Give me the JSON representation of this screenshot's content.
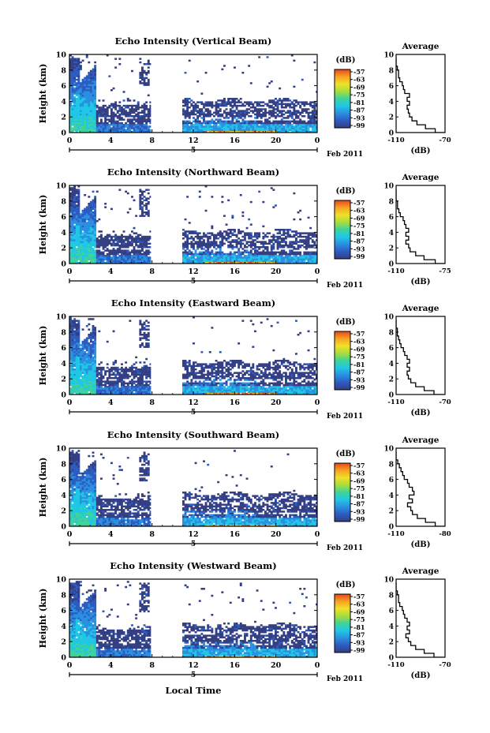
{
  "figure": {
    "xlabel": "Local Time",
    "date_label": "Feb 2011",
    "date_day": "5",
    "ylabel": "Height (km)",
    "colorbar_label": "(dB)",
    "avg_title": "Average",
    "avg_xlabel": "(dB)"
  },
  "chart_data": [
    {
      "type": "heatmap",
      "title": "Echo Intensity (Vertical Beam)",
      "xlim": [
        0,
        24
      ],
      "x_ticks": [
        "0",
        "4",
        "8",
        "12",
        "16",
        "20",
        "0"
      ],
      "ylim": [
        0,
        10
      ],
      "y_ticks": [
        "0",
        "2",
        "4",
        "6",
        "8",
        "10"
      ],
      "colorbar_ticks": [
        "-57",
        "-63",
        "-69",
        "-75",
        "-81",
        "-87",
        "-93",
        "-99"
      ],
      "gap_hours": [
        7.9,
        10.9
      ],
      "avg_xlim": [
        -110,
        -70
      ],
      "avg_x_ticks": [
        "-110",
        "-70"
      ],
      "avg_profile": [
        [
          -70,
          0
        ],
        [
          -78,
          0.5
        ],
        [
          -86,
          1
        ],
        [
          -93,
          1.5
        ],
        [
          -97,
          2
        ],
        [
          -99,
          2.5
        ],
        [
          -100,
          3
        ],
        [
          -101,
          3.5
        ],
        [
          -99,
          4
        ],
        [
          -101,
          4.5
        ],
        [
          -99,
          5
        ],
        [
          -103,
          5.5
        ],
        [
          -104,
          6
        ],
        [
          -105,
          6.5
        ],
        [
          -107,
          7
        ],
        [
          -108,
          7.5
        ],
        [
          -108,
          8
        ],
        [
          -109,
          8.5
        ],
        [
          -110,
          9
        ],
        [
          -110,
          9.5
        ],
        [
          -111,
          10
        ]
      ]
    },
    {
      "type": "heatmap",
      "title": "Echo Intensity (Northward Beam)",
      "xlim": [
        0,
        24
      ],
      "x_ticks": [
        "0",
        "4",
        "8",
        "12",
        "16",
        "20",
        "0"
      ],
      "ylim": [
        0,
        10
      ],
      "y_ticks": [
        "0",
        "2",
        "4",
        "6",
        "8",
        "10"
      ],
      "colorbar_ticks": [
        "-57",
        "-63",
        "-69",
        "-75",
        "-81",
        "-87",
        "-93",
        "-99"
      ],
      "gap_hours": [
        7.9,
        10.9
      ],
      "avg_xlim": [
        -110,
        -75
      ],
      "avg_x_ticks": [
        "-110",
        "-75"
      ],
      "avg_profile": [
        [
          -75,
          0
        ],
        [
          -82,
          0.5
        ],
        [
          -90,
          1
        ],
        [
          -96,
          1.5
        ],
        [
          -100,
          2
        ],
        [
          -101,
          2.5
        ],
        [
          -103,
          3
        ],
        [
          -101,
          3.5
        ],
        [
          -103,
          4
        ],
        [
          -101,
          4.5
        ],
        [
          -103,
          5
        ],
        [
          -104,
          5.5
        ],
        [
          -105,
          6
        ],
        [
          -107,
          6.5
        ],
        [
          -108,
          7
        ],
        [
          -109,
          7.5
        ],
        [
          -109,
          8
        ],
        [
          -110,
          8.5
        ],
        [
          -110,
          9
        ],
        [
          -110,
          9.5
        ],
        [
          -111,
          10
        ]
      ]
    },
    {
      "type": "heatmap",
      "title": "Echo Intensity (Eastward Beam)",
      "xlim": [
        0,
        24
      ],
      "x_ticks": [
        "0",
        "4",
        "8",
        "12",
        "16",
        "20",
        "0"
      ],
      "ylim": [
        0,
        10
      ],
      "y_ticks": [
        "0",
        "2",
        "4",
        "6",
        "8",
        "10"
      ],
      "colorbar_ticks": [
        "-57",
        "-63",
        "-69",
        "-75",
        "-81",
        "-87",
        "-93",
        "-99"
      ],
      "gap_hours": [
        7.9,
        10.9
      ],
      "avg_xlim": [
        -110,
        -70
      ],
      "avg_x_ticks": [
        "-110",
        "-70"
      ],
      "avg_profile": [
        [
          -71,
          0
        ],
        [
          -79,
          0.5
        ],
        [
          -87,
          1
        ],
        [
          -94,
          1.5
        ],
        [
          -98,
          2
        ],
        [
          -100,
          2.5
        ],
        [
          -101,
          3
        ],
        [
          -99,
          3.5
        ],
        [
          -101,
          4
        ],
        [
          -99,
          4.5
        ],
        [
          -101,
          5
        ],
        [
          -103,
          5.5
        ],
        [
          -104,
          6
        ],
        [
          -106,
          6.5
        ],
        [
          -107,
          7
        ],
        [
          -108,
          7.5
        ],
        [
          -109,
          8
        ],
        [
          -109,
          8.5
        ],
        [
          -110,
          9
        ],
        [
          -110,
          9.5
        ],
        [
          -111,
          10
        ]
      ]
    },
    {
      "type": "heatmap",
      "title": "Echo Intensity (Southward Beam)",
      "xlim": [
        0,
        24
      ],
      "x_ticks": [
        "0",
        "4",
        "8",
        "12",
        "16",
        "20",
        "0"
      ],
      "ylim": [
        0,
        10
      ],
      "y_ticks": [
        "0",
        "2",
        "4",
        "6",
        "8",
        "10"
      ],
      "colorbar_ticks": [
        "-57",
        "-63",
        "-69",
        "-75",
        "-81",
        "-87",
        "-93",
        "-99"
      ],
      "gap_hours": [
        7.9,
        10.9
      ],
      "avg_xlim": [
        -110,
        -80
      ],
      "avg_x_ticks": [
        "-110",
        "-80"
      ],
      "avg_profile": [
        [
          -80,
          0
        ],
        [
          -86,
          0.5
        ],
        [
          -92,
          1
        ],
        [
          -97,
          1.5
        ],
        [
          -100,
          2
        ],
        [
          -101,
          2.5
        ],
        [
          -103,
          3
        ],
        [
          -100,
          3.5
        ],
        [
          -102,
          4
        ],
        [
          -99,
          4.5
        ],
        [
          -100,
          5
        ],
        [
          -102,
          5.5
        ],
        [
          -103,
          6
        ],
        [
          -105,
          6.5
        ],
        [
          -106,
          7
        ],
        [
          -107,
          7.5
        ],
        [
          -108,
          8
        ],
        [
          -109,
          8.5
        ],
        [
          -110,
          9
        ],
        [
          -110,
          9.5
        ],
        [
          -111,
          10
        ]
      ]
    },
    {
      "type": "heatmap",
      "title": "Echo Intensity (Westward Beam)",
      "xlim": [
        0,
        24
      ],
      "x_ticks": [
        "0",
        "4",
        "8",
        "12",
        "16",
        "20",
        "0"
      ],
      "ylim": [
        0,
        10
      ],
      "y_ticks": [
        "0",
        "2",
        "4",
        "6",
        "8",
        "10"
      ],
      "colorbar_ticks": [
        "-57",
        "-63",
        "-69",
        "-75",
        "-81",
        "-87",
        "-93",
        "-99"
      ],
      "gap_hours": [
        7.9,
        10.9
      ],
      "avg_xlim": [
        -110,
        -70
      ],
      "avg_x_ticks": [
        "-110",
        "-70"
      ],
      "avg_profile": [
        [
          -71,
          0
        ],
        [
          -79,
          0.5
        ],
        [
          -87,
          1
        ],
        [
          -94,
          1.5
        ],
        [
          -98,
          2
        ],
        [
          -100,
          2.5
        ],
        [
          -102,
          3
        ],
        [
          -99,
          3.5
        ],
        [
          -101,
          4
        ],
        [
          -99,
          4.5
        ],
        [
          -101,
          5
        ],
        [
          -103,
          5.5
        ],
        [
          -104,
          6
        ],
        [
          -105,
          6.5
        ],
        [
          -107,
          7
        ],
        [
          -108,
          7.5
        ],
        [
          -108,
          8
        ],
        [
          -109,
          8.5
        ],
        [
          -110,
          9
        ],
        [
          -110,
          9.5
        ],
        [
          -111,
          10
        ]
      ]
    }
  ],
  "colors": {
    "background_echo": "#343e82",
    "colormap": [
      "#343e82",
      "#2d5cc0",
      "#2b8fe0",
      "#1fc7e6",
      "#3fd39a",
      "#a7dd3c",
      "#f0e028",
      "#f7a322",
      "#e8471c"
    ]
  }
}
